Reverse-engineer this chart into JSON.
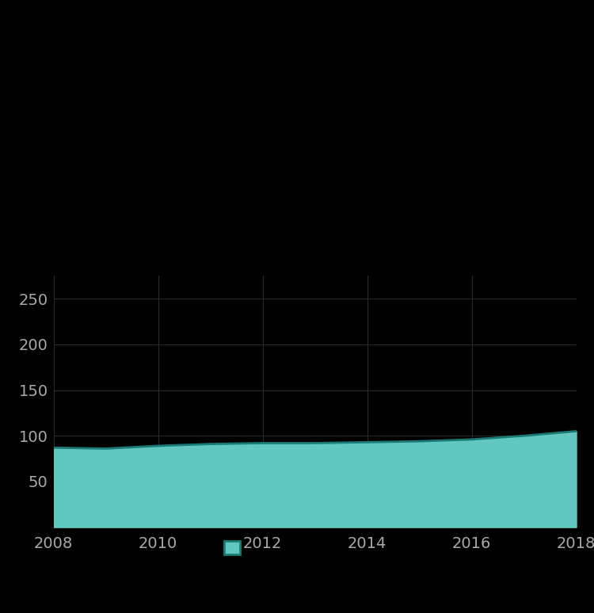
{
  "years": [
    2008,
    2009,
    2010,
    2011,
    2012,
    2013,
    2014,
    2015,
    2016,
    2017,
    2018
  ],
  "values": [
    87,
    86,
    89,
    91,
    92,
    92,
    93,
    94,
    96,
    100,
    105
  ],
  "fill_color": "#62C8BF",
  "line_color": "#1A7A78",
  "background_color": "#000000",
  "text_color": "#aaaaaa",
  "grid_color": "#2a2a2a",
  "yticks": [
    0,
    50,
    100,
    150,
    200,
    250
  ],
  "xticks": [
    2008,
    2010,
    2012,
    2014,
    2016,
    2018
  ],
  "ylim": [
    0,
    275
  ],
  "xlim": [
    2008,
    2018
  ],
  "legend_fill": "#62C8BF",
  "legend_edge": "#1A7A78",
  "font_size": 14
}
